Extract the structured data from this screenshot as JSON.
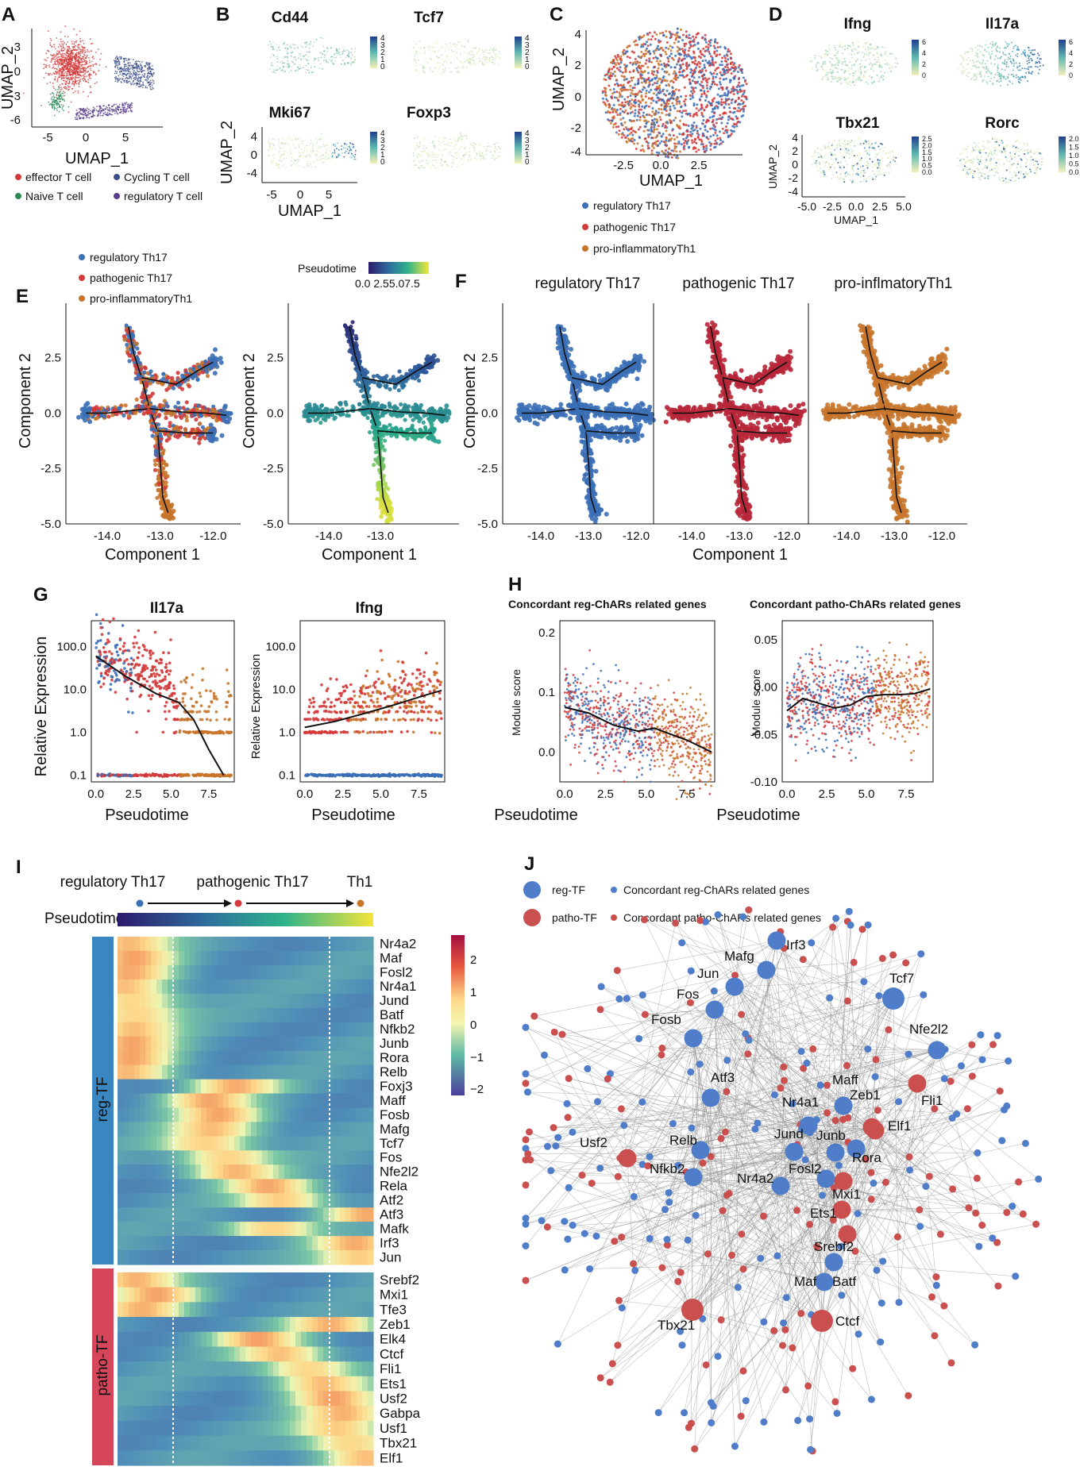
{
  "colors": {
    "blue": "#3b6fb6",
    "red": "#d33a3a",
    "orange": "#c8752c",
    "green": "#2e8b57",
    "purple": "#5a3d8c",
    "reg_bar": "#3a86c1",
    "patho_bar": "#d6465b",
    "node_blue": "#4f7dc9",
    "node_red": "#c9504f"
  },
  "panels": {
    "A": {
      "label": "A",
      "xlabel": "UMAP_1",
      "ylabel": "UMAP_2",
      "xticks": [
        "-5",
        "0",
        "5"
      ],
      "yticks": [
        "3",
        "0",
        "-3",
        "-6"
      ],
      "legend": [
        "effector T cell",
        "Cycling T cell",
        "Naive T cell",
        "regulatory T cell"
      ]
    },
    "B": {
      "label": "B",
      "genes": [
        "Cd44",
        "Tcf7",
        "Mki67",
        "Foxp3"
      ],
      "scale": [
        "4",
        "3",
        "2",
        "1",
        "0"
      ],
      "xlabel": "UMAP_1",
      "ylabel": "UMAP_2",
      "xticks": [
        "-5",
        "0",
        "5"
      ],
      "yticks": [
        "4",
        "0",
        "-4"
      ]
    },
    "C": {
      "label": "C",
      "xlabel": "UMAP_1",
      "ylabel": "UMAP_2",
      "xticks": [
        "-2.5",
        "0.0",
        "2.5"
      ],
      "yticks": [
        "4",
        "2",
        "0",
        "-2",
        "-4"
      ],
      "legend": [
        "regulatory Th17",
        "pathogenic Th17",
        "pro-inflammatoryTh1"
      ]
    },
    "D": {
      "label": "D",
      "genes": [
        "Ifng",
        "Il17a",
        "Tbx21",
        "Rorc"
      ],
      "scale_ifng": [
        "6",
        "4",
        "2",
        "0"
      ],
      "scale_il17a": [
        "6",
        "4",
        "2",
        "0"
      ],
      "scale_tbx21": [
        "2.5",
        "2.0",
        "1.5",
        "1.0",
        "0.5",
        "0.0"
      ],
      "scale_rorc": [
        "2.0",
        "1.5",
        "1.0",
        "0.5",
        "0.0"
      ],
      "xlabel": "UMAP_1",
      "ylabel": "UMAP_2",
      "xticks": [
        "-5.0",
        "-2.5",
        "0.0",
        "2.5",
        "5.0"
      ],
      "yticks": [
        "4",
        "2",
        "0",
        "-2",
        "-4"
      ]
    },
    "E": {
      "label": "E",
      "legend": [
        "regulatory Th17",
        "pathogenic Th17",
        "pro-inflammatoryTh1"
      ],
      "pseudotime_title": "Pseudotime",
      "pseudotime_ticks": "0.0 2.55.07.5",
      "xlabel": "Component 1",
      "ylabel": "Component 2",
      "xticks": [
        "-14.0",
        "-13.0",
        "-12.0"
      ],
      "yticks": [
        "2.5",
        "0.0",
        "-2.5",
        "-5.0"
      ]
    },
    "F": {
      "label": "F",
      "titles": [
        "regulatory Th17",
        "pathogenic Th17",
        "pro-inflmatoryTh1"
      ],
      "xlabel": "Component 1",
      "ylabel": "Component 2",
      "xticks": [
        "-14.0",
        "-13.0",
        "-12.0"
      ],
      "yticks": [
        "2.5",
        "0.0",
        "-2.5",
        "-5.0"
      ]
    },
    "G": {
      "label": "G",
      "titles": [
        "Il17a",
        "Ifng"
      ],
      "xlabel": "Pseudotime",
      "ylabel": "Relative Expression",
      "xticks": [
        "0.0",
        "2.5",
        "5.0",
        "7.5"
      ],
      "yticks": [
        "100.0",
        "10.0",
        "1.0",
        "0.1"
      ]
    },
    "H": {
      "label": "H",
      "titles": [
        "Concordant reg-ChARs related genes",
        "Concordant patho-ChARs related genes"
      ],
      "xlabel": "Pseudotime",
      "ylabel": "Module score",
      "xticks": [
        "0.0",
        "2.5",
        "5.0",
        "7.5"
      ],
      "yticks_left": [
        "0.2",
        "0.1",
        "0.0"
      ],
      "yticks_right": [
        "0.05",
        "0.00",
        "-0.05",
        "-0.10"
      ]
    },
    "I": {
      "label": "I",
      "stages": [
        "regulatory Th17",
        "pathogenic Th17",
        "Th1"
      ],
      "pseudotime_label": "Pseudotime",
      "group_reg": "reg-TF",
      "group_patho": "patho-TF",
      "scale": [
        "2",
        "1",
        "0",
        "−1",
        "−2"
      ]
    },
    "J": {
      "label": "J",
      "legend": [
        "reg-TF",
        "Concordant reg-ChARs related genes",
        "patho-TF",
        "Concordant patho-ChARs related genes"
      ]
    }
  },
  "chart_data": [
    {
      "panel": "A",
      "type": "scatter",
      "xlabel": "UMAP_1",
      "ylabel": "UMAP_2",
      "xlim": [
        -6,
        9
      ],
      "ylim": [
        -7,
        6
      ],
      "series": [
        {
          "name": "effector T cell",
          "center": [
            -1.5,
            1.2
          ],
          "spread": [
            2.3,
            2.8
          ]
        },
        {
          "name": "Cycling T cell",
          "center": [
            5.5,
            0.5
          ],
          "spread": [
            2.0,
            1.5
          ]
        },
        {
          "name": "Naive T cell",
          "center": [
            -3.0,
            -3.5
          ],
          "spread": [
            0.8,
            1.2
          ]
        },
        {
          "name": "regulatory T cell",
          "center": [
            1.5,
            -5.0
          ],
          "spread": [
            3.5,
            0.8
          ]
        }
      ]
    },
    {
      "panel": "C",
      "type": "scatter",
      "xlabel": "UMAP_1",
      "ylabel": "UMAP_2",
      "xlim": [
        -4.5,
        4.5
      ],
      "ylim": [
        -4.5,
        4.5
      ],
      "series": [
        {
          "name": "regulatory Th17",
          "region": "right"
        },
        {
          "name": "pathogenic Th17",
          "region": "mixed"
        },
        {
          "name": "pro-inflammatoryTh1",
          "region": "left"
        }
      ]
    },
    {
      "panel": "E",
      "type": "scatter",
      "xlabel": "Component 1",
      "ylabel": "Component 2",
      "xlim": [
        -14.6,
        -11.6
      ],
      "ylim": [
        -5.0,
        4.6
      ],
      "trajectory": [
        [
          -13.6,
          3.9
        ],
        [
          -13.5,
          2.7
        ],
        [
          -13.35,
          1.6
        ],
        [
          -13.2,
          0.2
        ],
        [
          -13.05,
          -0.8
        ],
        [
          -13.0,
          -2.2
        ],
        [
          -12.95,
          -3.8
        ],
        [
          -12.85,
          -4.5
        ]
      ],
      "branches": [
        [
          [
            -13.35,
            1.6
          ],
          [
            -12.7,
            1.3
          ],
          [
            -12.3,
            1.9
          ],
          [
            -12.0,
            2.3
          ]
        ],
        [
          [
            -13.2,
            0.2
          ],
          [
            -14.0,
            0.0
          ],
          [
            -14.4,
            0.0
          ]
        ],
        [
          [
            -13.2,
            0.2
          ],
          [
            -12.6,
            0.05
          ],
          [
            -12.1,
            0.0
          ],
          [
            -11.75,
            -0.1
          ]
        ],
        [
          [
            -13.05,
            -0.8
          ],
          [
            -12.5,
            -0.9
          ],
          [
            -12.0,
            -0.9
          ]
        ]
      ],
      "series": [
        "regulatory Th17",
        "pathogenic Th17",
        "pro-inflammatoryTh1"
      ]
    },
    {
      "panel": "G",
      "type": "scatter",
      "xlabel": "Pseudotime",
      "ylabel": "Relative Expression",
      "yscale": "log",
      "ylim": [
        0.1,
        300
      ],
      "xlim": [
        -0.3,
        9.2
      ],
      "plots": [
        {
          "title": "Il17a",
          "trend": [
            [
              0,
              60
            ],
            [
              2,
              20
            ],
            [
              4,
              8
            ],
            [
              5.5,
              5
            ],
            [
              6.5,
              2
            ],
            [
              7.5,
              0.4
            ],
            [
              8.5,
              0.1
            ]
          ]
        },
        {
          "title": "Ifng",
          "trend": [
            [
              0,
              1.3
            ],
            [
              2,
              1.8
            ],
            [
              4,
              2.8
            ],
            [
              6,
              4.5
            ],
            [
              8,
              7.5
            ],
            [
              9,
              9.5
            ]
          ]
        }
      ]
    },
    {
      "panel": "H",
      "type": "scatter",
      "xlabel": "Pseudotime",
      "ylabel": "Module score",
      "xlim": [
        -0.3,
        9.2
      ],
      "plots": [
        {
          "title": "Concordant reg-ChARs related genes",
          "ylim": [
            -0.05,
            0.22
          ],
          "trend": [
            [
              0,
              0.075
            ],
            [
              1.5,
              0.065
            ],
            [
              3,
              0.045
            ],
            [
              4.5,
              0.035
            ],
            [
              5.5,
              0.04
            ],
            [
              6.5,
              0.03
            ],
            [
              7.5,
              0.02
            ],
            [
              9,
              0.0
            ]
          ]
        },
        {
          "title": "Concordant patho-ChARs related genes",
          "ylim": [
            -0.1,
            0.07
          ],
          "trend": [
            [
              0,
              -0.025
            ],
            [
              1,
              -0.012
            ],
            [
              2,
              -0.017
            ],
            [
              3,
              -0.022
            ],
            [
              4,
              -0.019
            ],
            [
              5,
              -0.01
            ],
            [
              6,
              -0.008
            ],
            [
              7,
              -0.008
            ],
            [
              8,
              -0.007
            ],
            [
              9,
              -0.002
            ]
          ]
        }
      ]
    },
    {
      "panel": "I",
      "type": "heatmap",
      "reg_genes": [
        "Nr4a2",
        "Maf",
        "Fosl2",
        "Nr4a1",
        "Jund",
        "Batf",
        "Nfkb2",
        "Junb",
        "Rora",
        "Relb",
        "Foxj3",
        "Maff",
        "Fosb",
        "Mafg",
        "Tcf7",
        "Fos",
        "Nfe2l2",
        "Rela",
        "Atf2",
        "Atf3",
        "Mafk",
        "Irf3",
        "Jun"
      ],
      "patho_genes": [
        "Srebf2",
        "Mxi1",
        "Tfe3",
        "Zeb1",
        "Elk4",
        "Ctcf",
        "Fli1",
        "Ets1",
        "Usf2",
        "Gabpa",
        "Usf1",
        "Tbx21",
        "Elf1"
      ],
      "peaks": {
        "Nr4a2": 0.02,
        "Maf": 0.05,
        "Fosl2": 0.05,
        "Nr4a1": 0.03,
        "Jund": 0.05,
        "Batf": 0.05,
        "Nfkb2": 0.04,
        "Junb": 0.04,
        "Rora": 0.05,
        "Relb": 0.04,
        "Foxj3": 0.45,
        "Maff": 0.35,
        "Fosb": 0.4,
        "Mafg": 0.38,
        "Tcf7": 0.35,
        "Fos": 0.42,
        "Nfe2l2": 0.45,
        "Rela": 0.6,
        "Atf2": 0.65,
        "Atf3": 0.98,
        "Mafk": 0.6,
        "Irf3": 0.95,
        "Jun": 0.97,
        "Srebf2": 0.05,
        "Mxi1": 0.15,
        "Tfe3": 0.1,
        "Zeb1": 0.85,
        "Elk4": 0.55,
        "Ctcf": 0.65,
        "Fli1": 0.75,
        "Ets1": 0.8,
        "Usf2": 0.85,
        "Gabpa": 0.9,
        "Usf1": 0.88,
        "Tbx21": 0.92,
        "Elf1": 0.97
      },
      "color_range": [
        -2.5,
        2.5
      ]
    },
    {
      "panel": "J",
      "type": "network",
      "reg_tfs": [
        "Irf3",
        "Mafg",
        "Jun",
        "Fos",
        "Fosb",
        "Atf3",
        "Tcf7",
        "Nfe2l2",
        "Maff",
        "Nr4a1",
        "Jund",
        "Junb",
        "Relb",
        "Nfkb2",
        "Nr4a2",
        "Fosl2",
        "Rora",
        "Maf",
        "Batf"
      ],
      "patho_tfs": [
        "Usf2",
        "Zeb1",
        "Fli1",
        "Elf1",
        "Mxi1",
        "Ets1",
        "Srebf2",
        "Tbx21",
        "Ctcf"
      ]
    }
  ]
}
